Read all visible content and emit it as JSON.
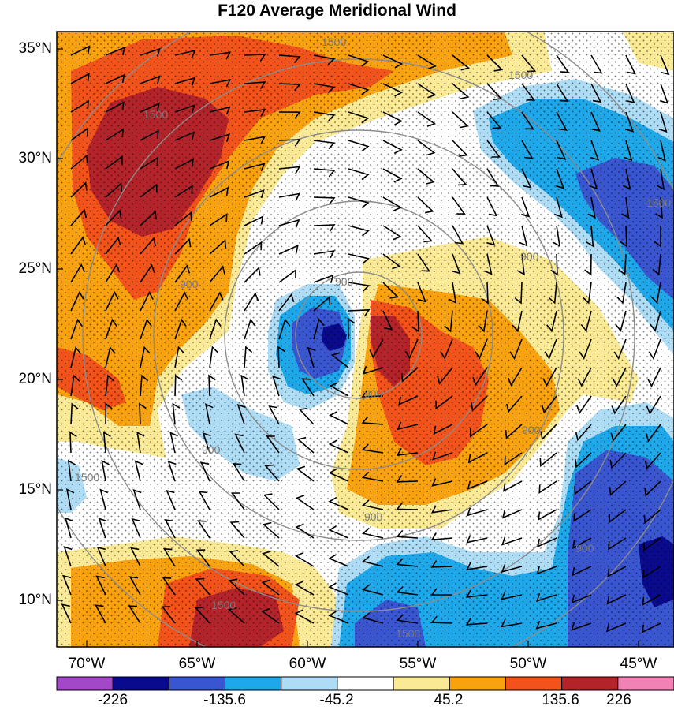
{
  "title": "F120 Average Meridional Wind",
  "lat_labels": [
    "35°N",
    "30°N",
    "25°N",
    "20°N",
    "15°N",
    "10°N"
  ],
  "lon_labels": [
    "70°W",
    "65°W",
    "60°W",
    "55°W",
    "50°W",
    "45°W"
  ],
  "colorbar": {
    "labels": [
      "-226",
      "-135.6",
      "-45.2",
      "45.2",
      "135.6",
      "226"
    ],
    "colors": [
      "#a349c8",
      "#0a0a8c",
      "#3a55d0",
      "#1ea8ea",
      "#aedcf5",
      "#ffffff",
      "#faea96",
      "#f9a20f",
      "#f2531a",
      "#b3242a",
      "#f282b6"
    ]
  },
  "contour_labels": [
    "1500",
    "1500",
    "1500",
    "1500",
    "900",
    "900",
    "900",
    "900",
    "900",
    "900",
    "900",
    "900",
    "1500",
    "1500",
    "1500"
  ],
  "map_colors": {
    "dark_red": "#b3242a",
    "red": "#f2531a",
    "orange": "#f9a20f",
    "yellow": "#faea96",
    "light_blue": "#aedcf5",
    "blue": "#1ea8ea",
    "mid_blue": "#3a55d0",
    "navy": "#0a0a8c",
    "ring": "#8c8c8c"
  }
}
